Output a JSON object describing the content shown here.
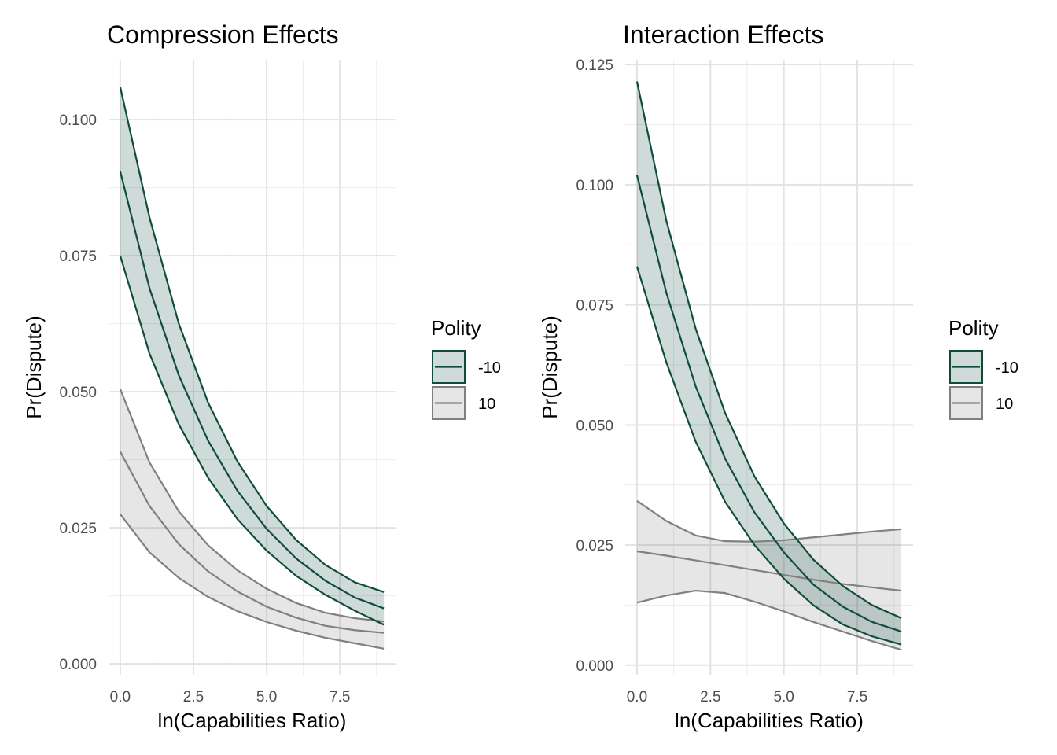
{
  "chart_data": [
    {
      "type": "line",
      "title": "Compression Effects",
      "xlabel": "ln(Capabilities Ratio)",
      "ylabel": "Pr(Dispute)",
      "xlim": [
        -0.4,
        9.4
      ],
      "ylim": [
        -0.002,
        0.111
      ],
      "x_ticks": [
        "0.0",
        "2.5",
        "5.0",
        "7.5"
      ],
      "x_tick_values": [
        0,
        2.5,
        5,
        7.5
      ],
      "y_ticks": [
        "0.000",
        "0.025",
        "0.050",
        "0.075",
        "0.100"
      ],
      "y_tick_values": [
        0,
        0.025,
        0.05,
        0.075,
        0.1
      ],
      "grid": true,
      "legend": {
        "title": "Polity",
        "position": "right"
      },
      "x": [
        0,
        1,
        2,
        3,
        4,
        5,
        6,
        7,
        8,
        9
      ],
      "series": [
        {
          "name": "-10",
          "color": "#0f4d3a",
          "fill": "#0f4d3a",
          "mean": [
            0.0905,
            0.069,
            0.053,
            0.041,
            0.0318,
            0.0248,
            0.0194,
            0.0153,
            0.0122,
            0.0102
          ],
          "lower": [
            0.075,
            0.057,
            0.044,
            0.0342,
            0.0266,
            0.0208,
            0.0162,
            0.0127,
            0.0098,
            0.0072
          ],
          "upper": [
            0.106,
            0.082,
            0.0625,
            0.048,
            0.0372,
            0.029,
            0.0228,
            0.0182,
            0.015,
            0.0132
          ]
        },
        {
          "name": "10",
          "color": "#808080",
          "fill": "#808080",
          "mean": [
            0.039,
            0.029,
            0.022,
            0.017,
            0.0133,
            0.0105,
            0.0085,
            0.007,
            0.0062,
            0.0057
          ],
          "lower": [
            0.0275,
            0.0205,
            0.0158,
            0.0123,
            0.0097,
            0.0077,
            0.0061,
            0.0048,
            0.0038,
            0.0028
          ],
          "upper": [
            0.0505,
            0.037,
            0.028,
            0.0218,
            0.0172,
            0.0138,
            0.0112,
            0.0094,
            0.0084,
            0.0078
          ]
        }
      ]
    },
    {
      "type": "line",
      "title": "Interaction Effects",
      "xlabel": "ln(Capabilities Ratio)",
      "ylabel": "Pr(Dispute)",
      "xlim": [
        -0.4,
        9.4
      ],
      "ylim": [
        -0.002,
        0.126
      ],
      "x_ticks": [
        "0.0",
        "2.5",
        "5.0",
        "7.5"
      ],
      "x_tick_values": [
        0,
        2.5,
        5,
        7.5
      ],
      "y_ticks": [
        "0.000",
        "0.025",
        "0.050",
        "0.075",
        "0.100",
        "0.125"
      ],
      "y_tick_values": [
        0,
        0.025,
        0.05,
        0.075,
        0.1,
        0.125
      ],
      "grid": true,
      "legend": {
        "title": "Polity",
        "position": "right"
      },
      "x": [
        0,
        1,
        2,
        3,
        4,
        5,
        6,
        7,
        8,
        9
      ],
      "series": [
        {
          "name": "-10",
          "color": "#0f4d3a",
          "fill": "#0f4d3a",
          "mean": [
            0.102,
            0.0775,
            0.058,
            0.043,
            0.0318,
            0.0235,
            0.0168,
            0.0122,
            0.009,
            0.007
          ],
          "lower": [
            0.083,
            0.063,
            0.0465,
            0.034,
            0.025,
            0.018,
            0.0125,
            0.0085,
            0.006,
            0.0043
          ],
          "upper": [
            0.1215,
            0.0925,
            0.07,
            0.0525,
            0.0393,
            0.0295,
            0.022,
            0.0165,
            0.0125,
            0.0098
          ]
        },
        {
          "name": "10",
          "color": "#808080",
          "fill": "#808080",
          "mean": [
            0.0237,
            0.0228,
            0.0218,
            0.0208,
            0.0198,
            0.0188,
            0.0178,
            0.0169,
            0.0162,
            0.0155
          ],
          "lower": [
            0.013,
            0.0145,
            0.0155,
            0.015,
            0.0132,
            0.0112,
            0.009,
            0.007,
            0.005,
            0.0032
          ],
          "upper": [
            0.0342,
            0.03,
            0.027,
            0.0258,
            0.0257,
            0.026,
            0.0266,
            0.0272,
            0.0278,
            0.0283
          ]
        }
      ]
    }
  ]
}
